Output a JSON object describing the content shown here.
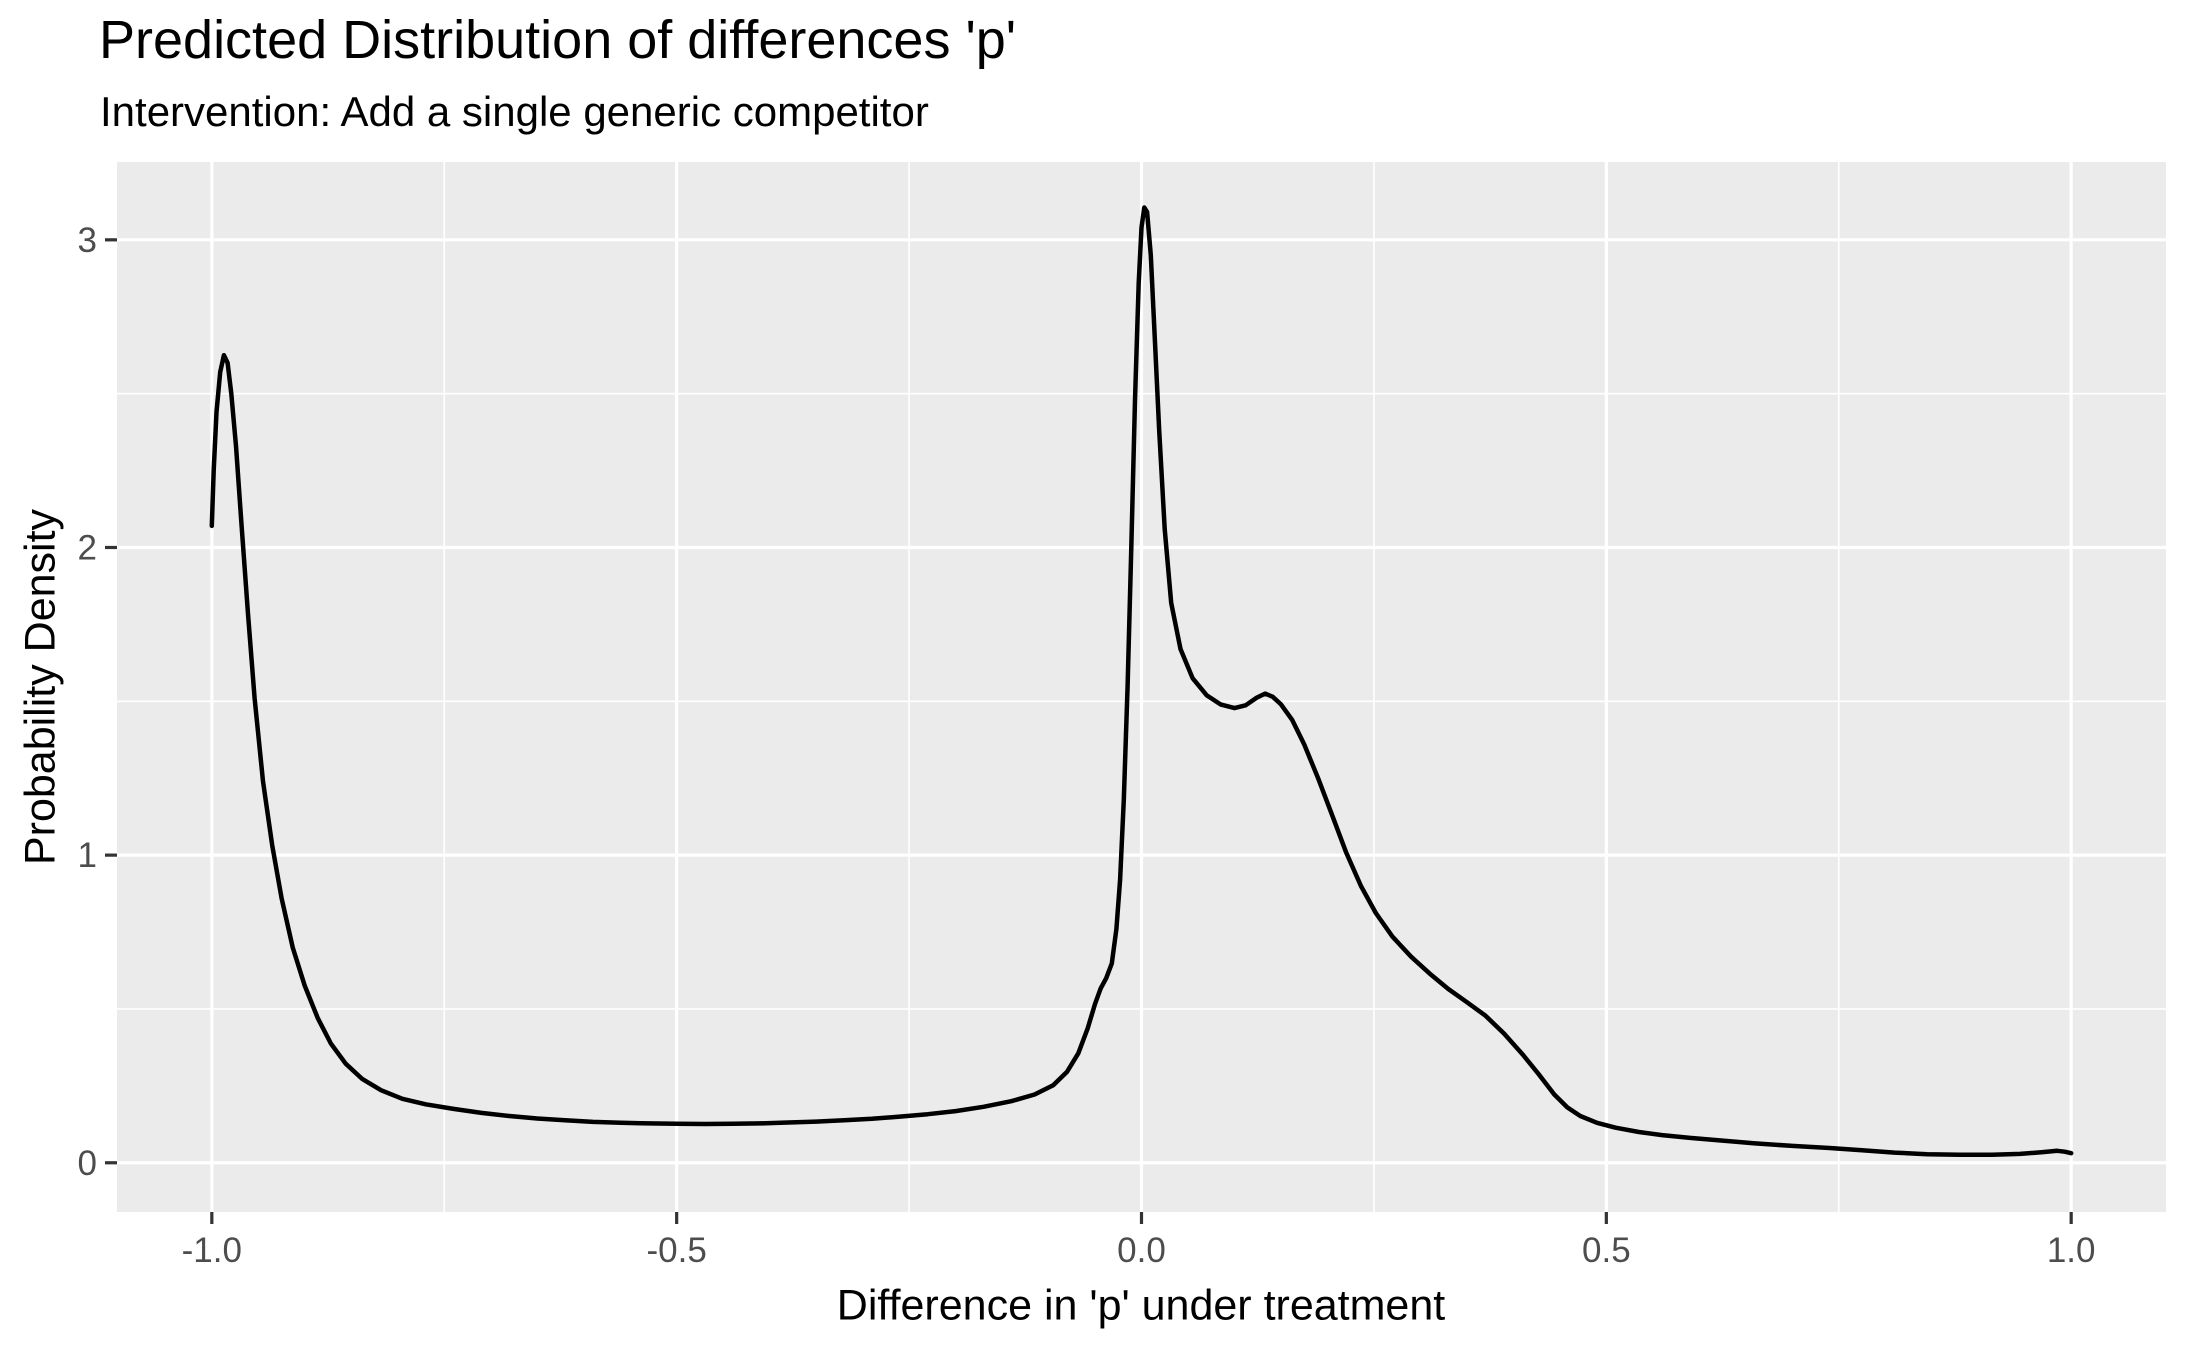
{
  "title": "Predicted Distribution of differences 'p'",
  "subtitle": "Intervention: Add a single generic competitor",
  "chart_data": {
    "type": "line",
    "subtype": "density",
    "title": "Predicted Distribution of differences 'p'",
    "subtitle": "Intervention: Add a single generic competitor",
    "xlabel": "Difference in 'p' under treatment",
    "ylabel": "Probability Density",
    "xlim": [
      -1.102,
      1.102
    ],
    "ylim": [
      -0.16,
      3.253
    ],
    "grid": true,
    "legend_position": "none",
    "x_ticks": {
      "values": [
        -1.0,
        -0.5,
        0.0,
        0.5,
        1.0
      ],
      "labels": [
        "-1.0",
        "-0.5",
        "0.0",
        "0.5",
        "1.0"
      ]
    },
    "y_ticks": {
      "values": [
        0,
        1,
        2,
        3
      ],
      "labels": [
        "0",
        "1",
        "2",
        "3"
      ]
    },
    "x_minor": [
      -0.75,
      -0.25,
      0.25,
      0.75
    ],
    "y_minor": [
      0.5,
      1.5,
      2.5
    ],
    "series": [
      {
        "name": "density",
        "color": "#000000",
        "points": [
          [
            -1.0,
            2.07
          ],
          [
            -0.998,
            2.25
          ],
          [
            -0.995,
            2.44
          ],
          [
            -0.991,
            2.57
          ],
          [
            -0.987,
            2.625
          ],
          [
            -0.983,
            2.6
          ],
          [
            -0.979,
            2.5
          ],
          [
            -0.974,
            2.33
          ],
          [
            -0.968,
            2.07
          ],
          [
            -0.961,
            1.78
          ],
          [
            -0.954,
            1.51
          ],
          [
            -0.945,
            1.24
          ],
          [
            -0.935,
            1.03
          ],
          [
            -0.925,
            0.86
          ],
          [
            -0.913,
            0.7
          ],
          [
            -0.9,
            0.575
          ],
          [
            -0.886,
            0.47
          ],
          [
            -0.872,
            0.388
          ],
          [
            -0.856,
            0.322
          ],
          [
            -0.838,
            0.272
          ],
          [
            -0.818,
            0.236
          ],
          [
            -0.795,
            0.208
          ],
          [
            -0.77,
            0.19
          ],
          [
            -0.74,
            0.175
          ],
          [
            -0.71,
            0.162
          ],
          [
            -0.68,
            0.152
          ],
          [
            -0.65,
            0.144
          ],
          [
            -0.62,
            0.138
          ],
          [
            -0.59,
            0.133
          ],
          [
            -0.56,
            0.13
          ],
          [
            -0.53,
            0.128
          ],
          [
            -0.5,
            0.127
          ],
          [
            -0.47,
            0.126
          ],
          [
            -0.44,
            0.127
          ],
          [
            -0.41,
            0.128
          ],
          [
            -0.38,
            0.131
          ],
          [
            -0.35,
            0.134
          ],
          [
            -0.32,
            0.138
          ],
          [
            -0.29,
            0.143
          ],
          [
            -0.26,
            0.15
          ],
          [
            -0.23,
            0.158
          ],
          [
            -0.2,
            0.168
          ],
          [
            -0.17,
            0.182
          ],
          [
            -0.14,
            0.2
          ],
          [
            -0.115,
            0.222
          ],
          [
            -0.095,
            0.252
          ],
          [
            -0.08,
            0.296
          ],
          [
            -0.068,
            0.356
          ],
          [
            -0.058,
            0.436
          ],
          [
            -0.05,
            0.516
          ],
          [
            -0.044,
            0.566
          ],
          [
            -0.038,
            0.6
          ],
          [
            -0.032,
            0.648
          ],
          [
            -0.027,
            0.76
          ],
          [
            -0.023,
            0.92
          ],
          [
            -0.019,
            1.18
          ],
          [
            -0.015,
            1.55
          ],
          [
            -0.011,
            2.0
          ],
          [
            -0.007,
            2.48
          ],
          [
            -0.003,
            2.86
          ],
          [
            0.0,
            3.04
          ],
          [
            0.003,
            3.105
          ],
          [
            0.006,
            3.09
          ],
          [
            0.01,
            2.95
          ],
          [
            0.014,
            2.7
          ],
          [
            0.019,
            2.38
          ],
          [
            0.025,
            2.06
          ],
          [
            0.032,
            1.82
          ],
          [
            0.042,
            1.67
          ],
          [
            0.055,
            1.575
          ],
          [
            0.07,
            1.52
          ],
          [
            0.085,
            1.49
          ],
          [
            0.1,
            1.478
          ],
          [
            0.112,
            1.487
          ],
          [
            0.124,
            1.512
          ],
          [
            0.133,
            1.525
          ],
          [
            0.141,
            1.515
          ],
          [
            0.15,
            1.49
          ],
          [
            0.162,
            1.44
          ],
          [
            0.175,
            1.36
          ],
          [
            0.19,
            1.25
          ],
          [
            0.205,
            1.13
          ],
          [
            0.22,
            1.01
          ],
          [
            0.236,
            0.9
          ],
          [
            0.252,
            0.812
          ],
          [
            0.27,
            0.735
          ],
          [
            0.29,
            0.67
          ],
          [
            0.31,
            0.615
          ],
          [
            0.33,
            0.565
          ],
          [
            0.35,
            0.522
          ],
          [
            0.37,
            0.478
          ],
          [
            0.39,
            0.42
          ],
          [
            0.41,
            0.352
          ],
          [
            0.428,
            0.285
          ],
          [
            0.444,
            0.222
          ],
          [
            0.458,
            0.18
          ],
          [
            0.472,
            0.152
          ],
          [
            0.49,
            0.13
          ],
          [
            0.51,
            0.114
          ],
          [
            0.535,
            0.1
          ],
          [
            0.56,
            0.09
          ],
          [
            0.59,
            0.081
          ],
          [
            0.625,
            0.072
          ],
          [
            0.66,
            0.063
          ],
          [
            0.7,
            0.055
          ],
          [
            0.74,
            0.048
          ],
          [
            0.775,
            0.041
          ],
          [
            0.81,
            0.033
          ],
          [
            0.845,
            0.028
          ],
          [
            0.88,
            0.026
          ],
          [
            0.915,
            0.026
          ],
          [
            0.945,
            0.029
          ],
          [
            0.968,
            0.034
          ],
          [
            0.985,
            0.039
          ],
          [
            0.993,
            0.036
          ],
          [
            1.0,
            0.031
          ]
        ]
      }
    ]
  },
  "style": {
    "panel_bg": "#EBEBEB",
    "grid_color": "#FFFFFF",
    "tick_color": "#333333",
    "tick_label_color": "#4D4D4D",
    "title_color": "#000000",
    "line_color": "#000000"
  }
}
